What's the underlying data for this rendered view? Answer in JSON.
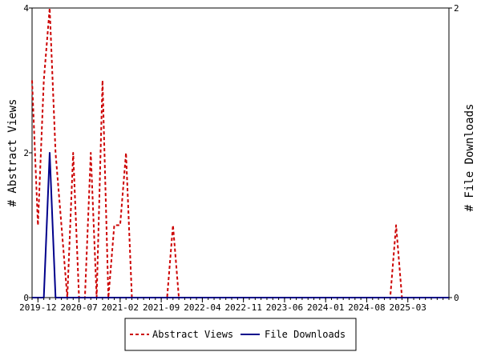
{
  "chart_data": {
    "type": "line",
    "left_axis_label": "# Abstract Views",
    "right_axis_label": "# File Downloads",
    "left_ylim": [
      0,
      4
    ],
    "right_ylim": [
      0,
      2
    ],
    "left_ticks": [
      "0",
      "2",
      "4"
    ],
    "right_ticks": [
      "0",
      "2"
    ],
    "x_start": "2019-11",
    "x_end": "2025-10",
    "x_tick_labels": [
      "2019-12",
      "2020-07",
      "2021-02",
      "2021-09",
      "2022-04",
      "2022-11",
      "2023-06",
      "2024-01",
      "2024-08",
      "2025-03"
    ],
    "grid": false,
    "legend_position": "bottom-center",
    "series": [
      {
        "name": "Abstract Views",
        "axis": "left",
        "color": "#cc0000",
        "style": "dashed",
        "points": [
          [
            "2019-11",
            3
          ],
          [
            "2019-12",
            1
          ],
          [
            "2020-01",
            3
          ],
          [
            "2020-02",
            4
          ],
          [
            "2020-03",
            2
          ],
          [
            "2020-04",
            1
          ],
          [
            "2020-05",
            0
          ],
          [
            "2020-06",
            2
          ],
          [
            "2020-07",
            0
          ],
          [
            "2020-08",
            0
          ],
          [
            "2020-09",
            2
          ],
          [
            "2020-10",
            0
          ],
          [
            "2020-11",
            3
          ],
          [
            "2020-12",
            0
          ],
          [
            "2021-01",
            1
          ],
          [
            "2021-02",
            1
          ],
          [
            "2021-03",
            2
          ],
          [
            "2021-04",
            0
          ],
          [
            "2021-05",
            0
          ],
          [
            "2021-06",
            0
          ],
          [
            "2021-07",
            0
          ],
          [
            "2021-08",
            0
          ],
          [
            "2021-09",
            0
          ],
          [
            "2021-10",
            0
          ],
          [
            "2021-11",
            1
          ],
          [
            "2021-12",
            0
          ],
          [
            "2022-01",
            0
          ],
          [
            "2024-12",
            0
          ],
          [
            "2025-01",
            1
          ],
          [
            "2025-02",
            0
          ],
          [
            "2025-10",
            0
          ]
        ]
      },
      {
        "name": "File Downloads",
        "axis": "right",
        "color": "#00008b",
        "style": "solid",
        "points": [
          [
            "2019-11",
            0
          ],
          [
            "2019-12",
            0
          ],
          [
            "2020-01",
            0
          ],
          [
            "2020-02",
            1
          ],
          [
            "2020-03",
            0
          ],
          [
            "2025-10",
            0
          ]
        ]
      }
    ]
  }
}
